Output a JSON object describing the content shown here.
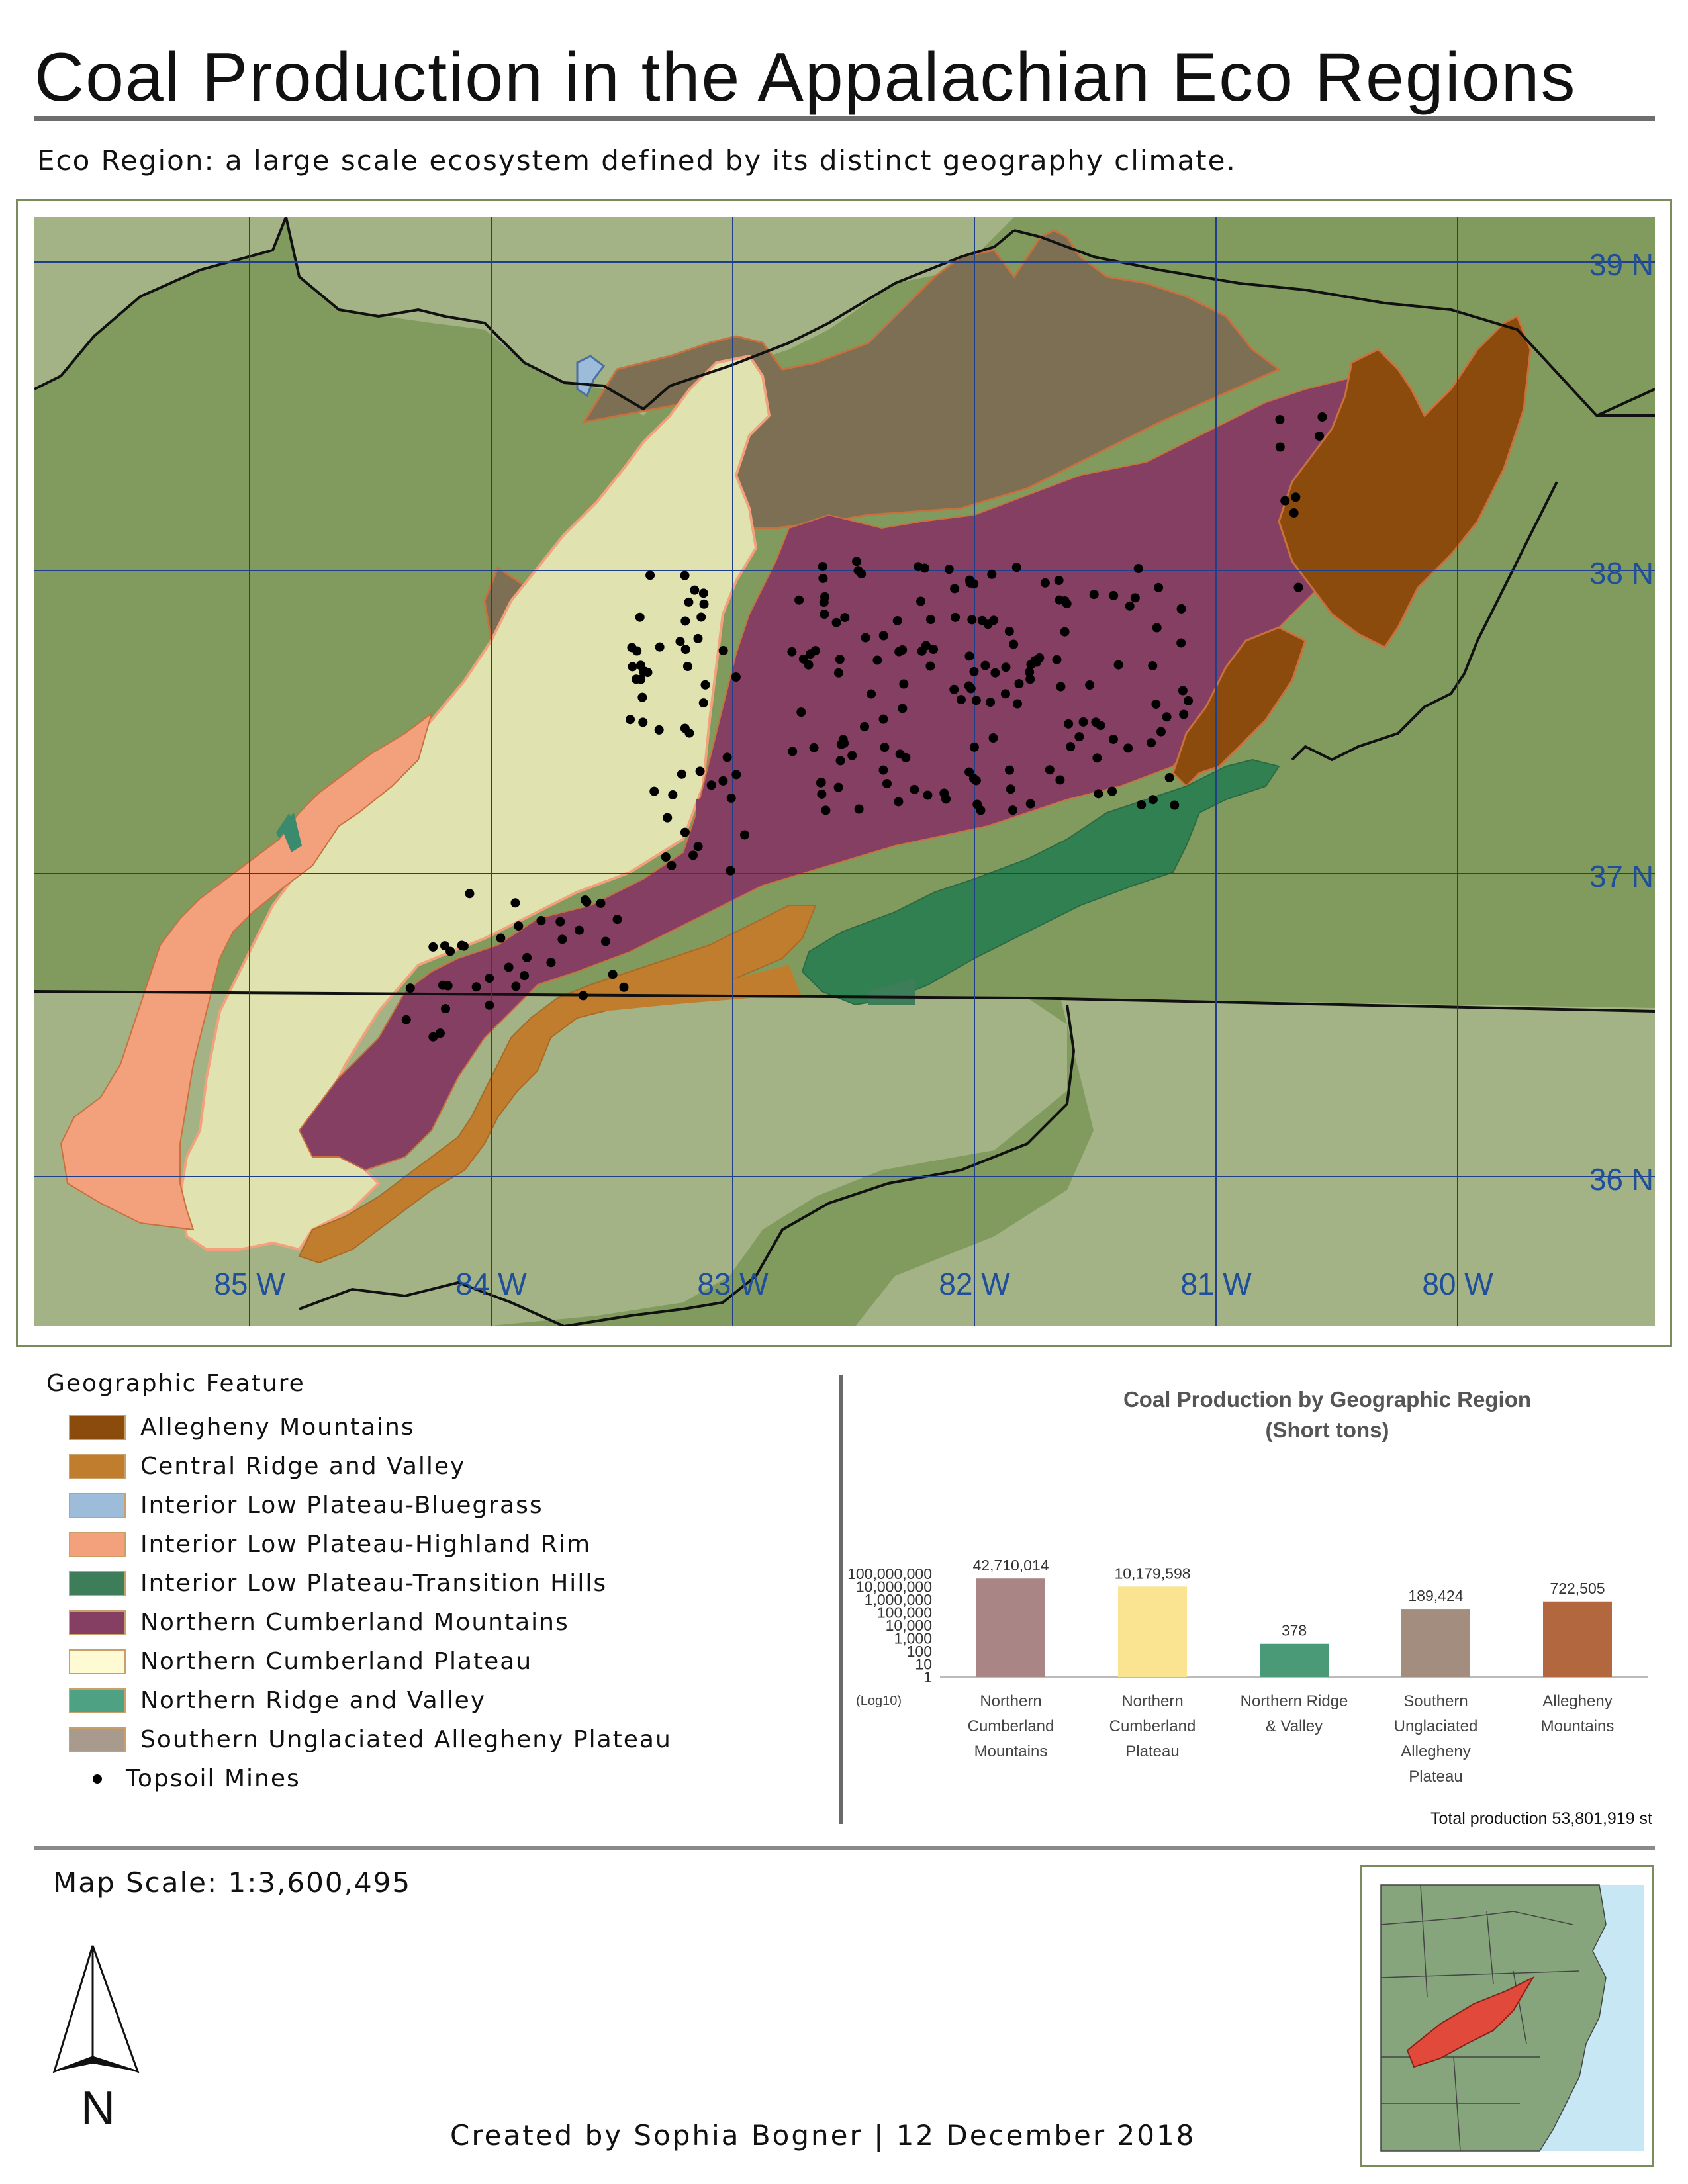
{
  "title": "Coal Production in the Appalachian Eco Regions",
  "subtitle": "Eco Region: a large scale ecosystem defined by its distinct geography climate.",
  "map": {
    "latitude_labels": [
      "39 N",
      "38 N",
      "37 N",
      "36 N"
    ],
    "longitude_labels": [
      "85 W",
      "84 W",
      "83 W",
      "82 W",
      "81 W",
      "80 W"
    ],
    "label_color": "#1f4e9a",
    "grid_color": "#1f3f8a",
    "background_color": "#809a5e"
  },
  "legend": {
    "title": "Geographic Feature",
    "items": [
      {
        "label": "Allegheny Mountains",
        "color": "#8b4b0c"
      },
      {
        "label": "Central Ridge and Valley",
        "color": "#c17d2e"
      },
      {
        "label": "Interior Low Plateau-Bluegrass",
        "color": "#9dbcd9"
      },
      {
        "label": "Interior Low Plateau-Highland Rim",
        "color": "#f3a07c"
      },
      {
        "label": "Interior Low Plateau-Transition Hills",
        "color": "#3e7d5a"
      },
      {
        "label": "Northern Cumberland Mountains",
        "color": "#853f62"
      },
      {
        "label": "Northern Cumberland Plateau",
        "color": "#fefad3"
      },
      {
        "label": "Northern Ridge and Valley",
        "color": "#4ea283"
      },
      {
        "label": "Southern Unglaciated Allegheny Plateau",
        "color": "#a89a8c"
      }
    ],
    "mines_label": "Topsoil Mines"
  },
  "chart_data": {
    "type": "bar",
    "title": "Coal Production by Geographic Region",
    "subtitle": "(Short tons)",
    "categories": [
      [
        "Northern",
        "Cumberland",
        "Mountains"
      ],
      [
        "Northern",
        "Cumberland",
        "Plateau"
      ],
      [
        "Northern Ridge",
        "& Valley"
      ],
      [
        "Southern",
        "Unglaciated",
        "Allegheny",
        "Plateau"
      ],
      [
        "Allegheny",
        "Mountains"
      ]
    ],
    "values": [
      42710014,
      10179598,
      378,
      189424,
      722505
    ],
    "value_labels": [
      "42,710,014",
      "10,179,598",
      "378",
      "189,424",
      "722,505"
    ],
    "colors": [
      "#a98585",
      "#fae391",
      "#4a9a78",
      "#a28d7f",
      "#b3673e"
    ],
    "y_scale": "log",
    "ylim": [
      1,
      100000000
    ],
    "y_ticks": [
      "100,000,000",
      "10,000,000",
      "1,000,000",
      "100,000",
      "10,000",
      "1,000",
      "100",
      "10",
      "1"
    ],
    "y_tick_values": [
      100000000,
      10000000,
      1000000,
      100000,
      10000,
      1000,
      100,
      10,
      1
    ],
    "y_note": "(Log10)",
    "total": "Total production 53,801,919 st"
  },
  "scale_text": "Map Scale: 1:3,600,495",
  "north_label": "N",
  "credit": "Created by Sophia Bogner | 12 December 2018"
}
